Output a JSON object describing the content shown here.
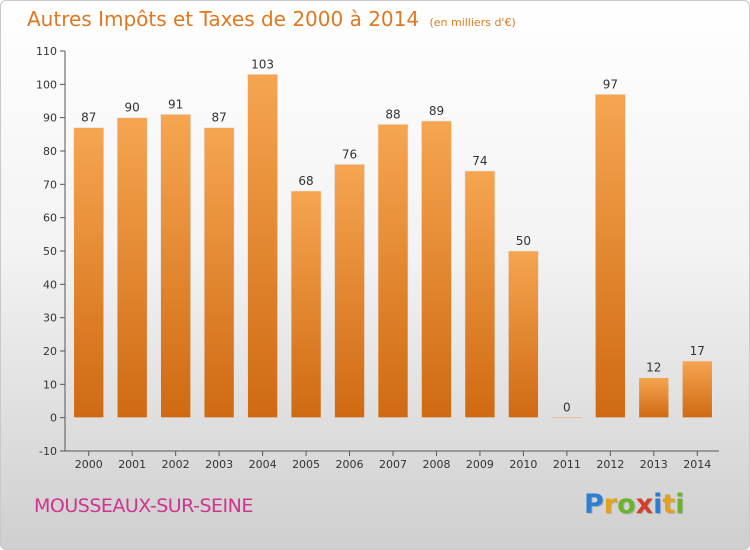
{
  "header": {
    "title": "Autres Impôts et Taxes de 2000 à 2014",
    "subtitle": "(en milliers d'€)"
  },
  "footer": {
    "commune": "MOUSSEAUX-SUR-SEINE",
    "logo_letters": [
      "P",
      "r",
      "o",
      "x",
      "i",
      "t",
      "i"
    ],
    "logo_colors": [
      "#2a7fd4",
      "#e2a21b",
      "#6ab32a",
      "#d63c2a",
      "#2a7fd4",
      "#e2a21b",
      "#6ab32a"
    ]
  },
  "chart_data": {
    "type": "bar",
    "title": "Autres Impôts et Taxes de 2000 à 2014",
    "subtitle": "(en milliers d'€)",
    "categories": [
      "2000",
      "2001",
      "2002",
      "2003",
      "2004",
      "2005",
      "2006",
      "2007",
      "2008",
      "2009",
      "2010",
      "2011",
      "2012",
      "2013",
      "2014"
    ],
    "values": [
      87,
      90,
      91,
      87,
      103,
      68,
      76,
      88,
      89,
      74,
      50,
      0,
      97,
      12,
      17
    ],
    "ylim": [
      -10,
      110
    ],
    "yticks": [
      -10,
      0,
      10,
      20,
      30,
      40,
      50,
      60,
      70,
      80,
      90,
      100,
      110
    ],
    "grid": false,
    "colors": {
      "bar_top": "#f6a551",
      "bar_bottom": "#cf6a12",
      "bar_stroke": "#e5e5e5",
      "axis": "#555555",
      "text": "#333333"
    }
  }
}
